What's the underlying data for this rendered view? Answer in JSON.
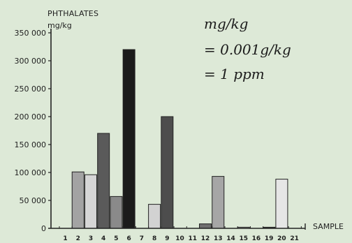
{
  "chart_data": {
    "type": "bar",
    "ylabel_title": "PHTHALATES",
    "ylabel_unit": "mg/kg",
    "xlabel": "SAMPLE",
    "annotation": [
      "mg/kg",
      "= 0.001g/kg",
      "= 1 ppm"
    ],
    "ylim": [
      0,
      350000
    ],
    "ytick_labels": [
      "0",
      "50 000",
      "100 000",
      "150 000",
      "200 000",
      "250 000",
      "300 000",
      "350 000"
    ],
    "ytick_values": [
      0,
      50000,
      100000,
      150000,
      200000,
      250000,
      300000,
      350000
    ],
    "categories": [
      "1",
      "2",
      "3",
      "4",
      "5",
      "6",
      "7",
      "8",
      "9",
      "10",
      "11",
      "12",
      "13",
      "14",
      "15",
      "16",
      "19",
      "20",
      "21"
    ],
    "values": [
      0,
      101000,
      96000,
      170000,
      57000,
      320000,
      0,
      43000,
      200000,
      0,
      0,
      8000,
      93000,
      0,
      2000,
      0,
      2000,
      88000,
      0
    ],
    "bar_colors": [
      "#ffffff",
      "#a3a3a3",
      "#d6d6d6",
      "#5a5a5a",
      "#8a8a8a",
      "#1b1b1b",
      "#ffffff",
      "#d2d2d2",
      "#4d4d4d",
      "#ffffff",
      "#ffffff",
      "#6f6f6f",
      "#a6a6a6",
      "#ffffff",
      "#bcbcbc",
      "#ffffff",
      "#3a3a3a",
      "#e6e6e6",
      "#ffffff"
    ],
    "grid": false,
    "background": "#dde9d7"
  }
}
